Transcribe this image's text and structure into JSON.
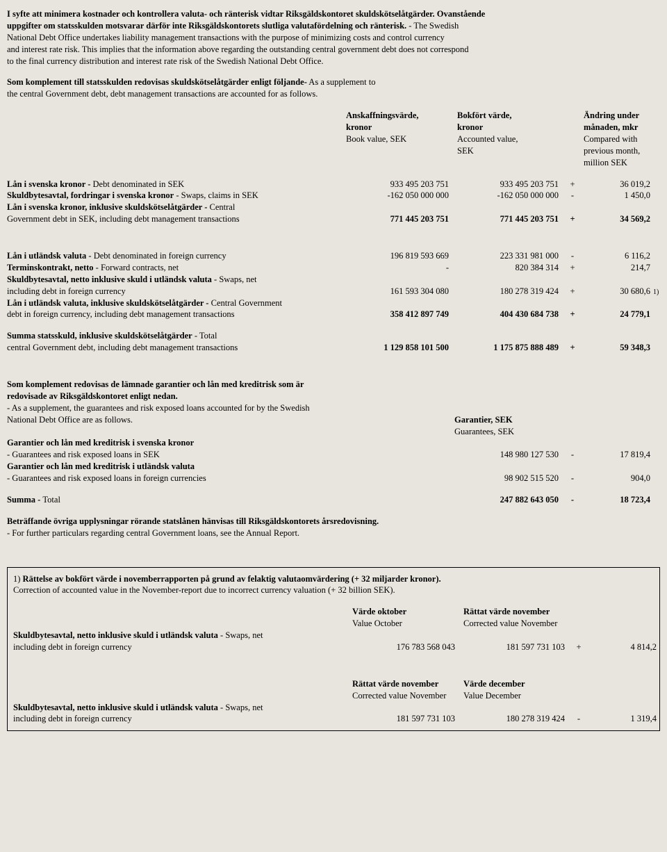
{
  "intro": {
    "p1_a": "I syfte att minimera kostnader och kontrollera valuta- och ränterisk vidtar Riksgäldskontoret skuldskötselåtgärder. Ovanstående",
    "p1_b": "uppgifter om statsskulden motsvarar därför inte Riksgäldskontorets slutliga valutafördelning och ränterisk.",
    "p1_c": " - The Swedish",
    "p2": "National Debt Office undertakes liability management transactions with the purpose of minimizing costs and control currency",
    "p3": "and interest rate risk. This implies that the information above regarding  the outstanding central government debt does not correspond",
    "p4": "to the final currency distribution and interest rate risk of the Swedish National Debt Office.",
    "p5_a": "Som komplement till statsskulden redovisas skuldskötselåtgärder enligt följande-",
    "p5_b": " As a supplement to",
    "p6": "the central Government debt, debt management transactions are accounted for as follows."
  },
  "headers": {
    "h1a": "Anskaffningsvärde,",
    "h1b": "kronor",
    "h1c": "Book value, SEK",
    "h2a": "Bokfört värde,",
    "h2b": "kronor",
    "h2c": "Accounted value,",
    "h2d": "SEK",
    "h3a": "Ändring under",
    "h3b": "månaden, mkr",
    "h3c": "Compared with",
    "h3d": "previous month,",
    "h3e": "million SEK"
  },
  "t1": {
    "r1_l_b": "Lån i svenska kronor - ",
    "r1_l": "Debt denominated in SEK",
    "r1_a": "933 495 203 751",
    "r1_b": "933 495 203 751",
    "r1_s": "+",
    "r1_c": "36 019,2",
    "r2_l_b": "Skuldbytesavtal, fordringar i svenska kronor",
    "r2_l": " - Swaps, claims in SEK",
    "r2_a": "-162 050 000 000",
    "r2_b": "-162 050 000 000",
    "r2_s": "-",
    "r2_c": "1 450,0",
    "r3_l_b": "Lån i svenska kronor, inklusive skuldskötselåtgärder - ",
    "r3_l1": "Central",
    "r3_l2": "Government debt in SEK, including debt management transactions",
    "r3_a": "771 445 203 751",
    "r3_b": "771 445 203 751",
    "r3_s": "+",
    "r3_c": "34 569,2",
    "r4_l_b": "Lån i utländsk valuta",
    "r4_l": " - Debt denominated in foreign currency",
    "r4_a": "196 819 593 669",
    "r4_b": "223 331 981 000",
    "r4_s": "-",
    "r4_c": "6 116,2",
    "r5_l_b": "Terminskontrakt, netto",
    "r5_l": " - Forward contracts, net",
    "r5_a": "-",
    "r5_b": "820 384 314",
    "r5_s": "+",
    "r5_c": "214,7",
    "r6_l_b": "Skuldbytesavtal, netto inklusive skuld i utländsk valuta",
    "r6_l": " - Swaps, net",
    "r6_l2": "including debt in foreign currency",
    "r6_a": "161 593 304 080",
    "r6_b": "180 278 319 424",
    "r6_s": "+",
    "r6_c": "30 680,6",
    "r6_n": "1)",
    "r7_l_b": "Lån i utländsk valuta, inklusive skuldskötselåtgärder - ",
    "r7_l1": "Central Government",
    "r7_l2": "debt in foreign currency, including debt management transactions",
    "r7_a": "358 412 897 749",
    "r7_b": "404 430 684 738",
    "r7_s": "+",
    "r7_c": "24 779,1",
    "r8_l_b": "Summa statsskuld, inklusive skuldskötselåtgärder",
    "r8_l": " - Total",
    "r8_l2": "central Government debt, including debt management transactions",
    "r8_a": "1 129 858 101 500",
    "r8_b": "1 175 875 888 489",
    "r8_s": "+",
    "r8_c": "59 348,3"
  },
  "supp": {
    "l1": "Som komplement redovisas de lämnade garantier och lån med kreditrisk som är",
    "l2": "redovisade av Riksgäldskontoret enligt nedan.",
    "l3": " - As a supplement, the guarantees and risk exposed loans accounted for by the Swedish",
    "l4": "National Debt Office are as follows.",
    "gh1": "Garantier, SEK",
    "gh2": "Guarantees, SEK",
    "g1_h": "Garantier och lån med kreditrisk i svenska kronor",
    "g1_l": "- Guarantees and risk exposed loans in SEK",
    "g1_b": "148 980 127 530",
    "g1_s": "-",
    "g1_c": "17 819,4",
    "g2_h": "Garantier och lån med kreditrisk i utländsk valuta",
    "g2_l": "- Guarantees and risk exposed loans in foreign currencies",
    "g2_b": "98 902 515 520",
    "g2_s": "-",
    "g2_c": "904,0",
    "g3_b": "Summa - ",
    "g3_l": "Total",
    "g3_v": "247 882 643 050",
    "g3_s": "-",
    "g3_c": "18 723,4"
  },
  "closing": {
    "l1": "Beträffande övriga upplysningar rörande statslånen hänvisas till Riksgäldskontorets årsredovisning.",
    "l2": " - For further particulars regarding central Government loans, see the Annual Report."
  },
  "footnote": {
    "fn1_a": "1) ",
    "fn1_b": "Rättelse av bokfört värde i novemberrapporten  på grund av felaktig valutaomvärdering (+ 32 miljarder kronor).",
    "fn2": "Correction of accounted value in the November-report due to incorrect currency valuation (+ 32 billion SEK).",
    "h1a": "Värde oktober",
    "h1b": "Value October",
    "h2a": "Rättat värde november",
    "h2b": "Corrected value November",
    "r1_l_b": "Skuldbytesavtal, netto inklusive skuld i utländsk valuta",
    "r1_l": " - Swaps, net",
    "r1_l2": "including debt in foreign currency",
    "r1_a": "176 783 568 043",
    "r1_b": "181 597 731 103",
    "r1_s": "+",
    "r1_c": "4 814,2",
    "h3a": "Rättat värde november",
    "h3b": "Corrected value November",
    "h4a": "Värde december",
    "h4b": "Value December",
    "r2_l_b": "Skuldbytesavtal, netto inklusive skuld i utländsk valuta",
    "r2_l": " - Swaps, net",
    "r2_l2": "including debt in foreign currency",
    "r2_a": "181 597 731 103",
    "r2_b": "180 278 319 424",
    "r2_s": "-",
    "r2_c": "1 319,4"
  }
}
